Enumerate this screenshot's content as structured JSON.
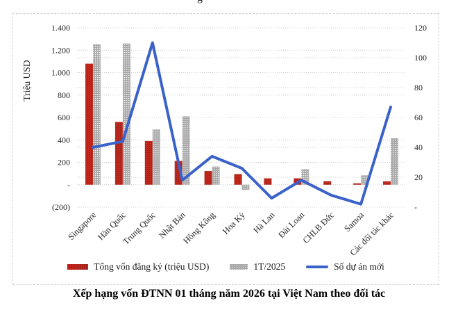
{
  "partial_top_text": "g",
  "caption": "Xếp hạng vốn ĐTNN 01 tháng năm 2026 tại Việt Nam theo đối tác",
  "chart_data": {
    "type": "bar+line combo",
    "grid": "dotted horizontal gridlines, plot framed by dashed light-gray chart border",
    "categories": [
      "Singapore",
      "Hàn Quốc",
      "Trung Quốc",
      "Nhật Bản",
      "Hồng Kông",
      "Hoa Kỳ",
      "Hà Lan",
      "Đài Loan",
      "CHLB Đức",
      "Samoa",
      "Các đối tác khác"
    ],
    "series": [
      {
        "name": "Tổng vốn đăng ký (triệu  USD)",
        "type": "bar",
        "axis": "left",
        "color": "#c2281e",
        "values": [
          1080,
          560,
          390,
          212,
          122,
          95,
          57,
          57,
          31,
          12,
          30
        ]
      },
      {
        "name": "1T/2025",
        "type": "bar",
        "axis": "left",
        "color": "#a9a9a9",
        "values": [
          1255,
          1260,
          495,
          610,
          162,
          -45,
          0,
          140,
          0,
          85,
          415
        ]
      },
      {
        "name": "Số dự án mới",
        "type": "line",
        "axis": "right",
        "color": "#3a62c9",
        "values": [
          40,
          44,
          110,
          18,
          34,
          26,
          6,
          18,
          8,
          2,
          67
        ]
      }
    ],
    "left_axis": {
      "title": "Triệu USD",
      "range": [
        -200,
        1400
      ],
      "ticks": [
        {
          "label": "1.400",
          "value": 1400
        },
        {
          "label": "1.200",
          "value": 1200
        },
        {
          "label": "1.000",
          "value": 1000
        },
        {
          "label": "800",
          "value": 800
        },
        {
          "label": "600",
          "value": 600
        },
        {
          "label": "400",
          "value": 400
        },
        {
          "label": "200",
          "value": 200
        },
        {
          "label": "-",
          "value": 0
        },
        {
          "label": "(200)",
          "value": -200
        }
      ]
    },
    "right_axis": {
      "title": "",
      "range": [
        0,
        120
      ],
      "ticks": [
        {
          "label": "120",
          "value": 120
        },
        {
          "label": "100",
          "value": 100
        },
        {
          "label": "80",
          "value": 80
        },
        {
          "label": "60",
          "value": 60
        },
        {
          "label": "40",
          "value": 40
        },
        {
          "label": "20",
          "value": 20
        },
        {
          "label": "-",
          "value": 0
        }
      ]
    },
    "legend_position": "bottom"
  }
}
